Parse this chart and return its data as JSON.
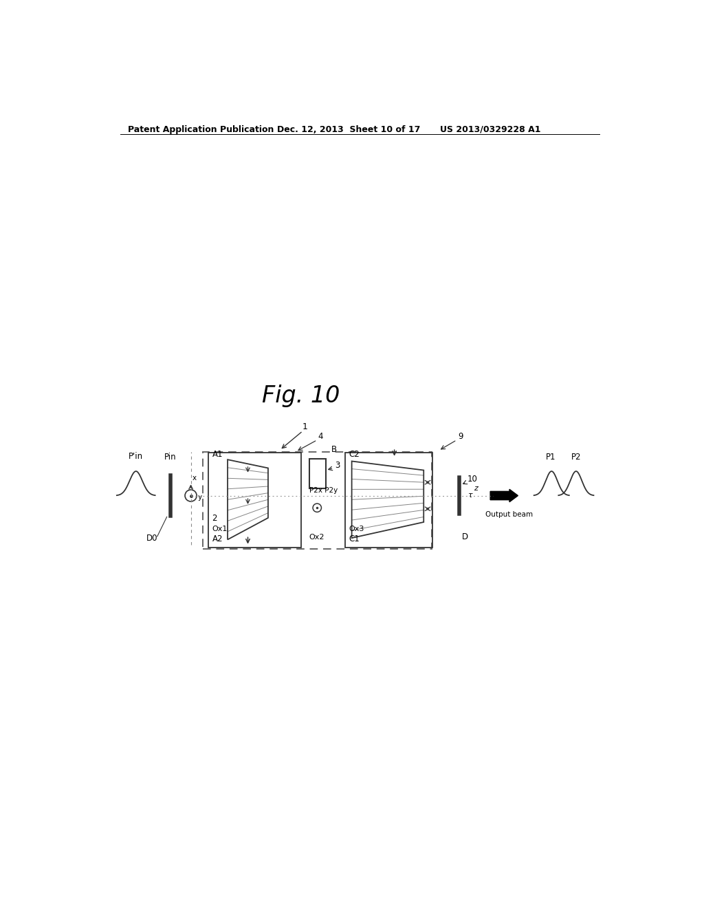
{
  "fig_title": "Fig. 10",
  "header_left": "Patent Application Publication",
  "header_mid": "Dec. 12, 2013  Sheet 10 of 17",
  "header_right": "US 2013/0329228 A1",
  "background": "#ffffff",
  "text_color": "#000000",
  "line_color": "#333333",
  "dashed_color": "#888888"
}
